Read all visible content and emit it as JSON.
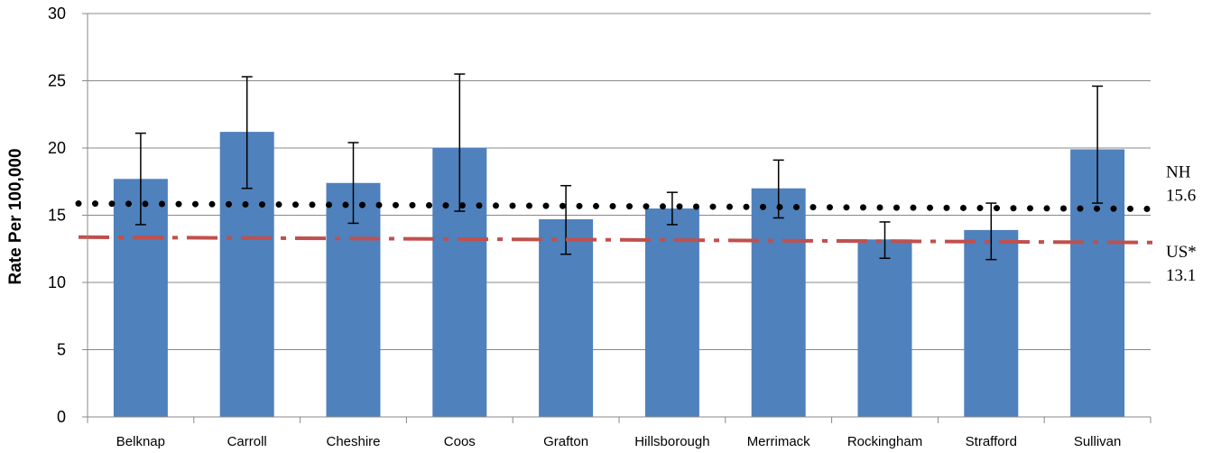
{
  "chart_data": {
    "type": "bar",
    "title": "",
    "xlabel": "",
    "ylabel": "Rate Per 100,000",
    "ylim": [
      0,
      30
    ],
    "yticks": [
      0,
      5,
      10,
      15,
      20,
      25,
      30
    ],
    "grid": true,
    "categories": [
      "Belknap",
      "Carroll",
      "Cheshire",
      "Coos",
      "Grafton",
      "Hillsborough",
      "Merrimack",
      "Rockingham",
      "Strafford",
      "Sullivan"
    ],
    "values": [
      17.7,
      21.2,
      17.4,
      20.0,
      14.7,
      15.5,
      17.0,
      13.2,
      13.9,
      19.9
    ],
    "error_low": [
      14.3,
      17.0,
      14.4,
      15.3,
      12.1,
      14.3,
      14.8,
      11.8,
      11.7,
      15.9
    ],
    "error_high": [
      21.1,
      25.3,
      20.4,
      25.5,
      17.2,
      16.7,
      19.1,
      14.5,
      15.9,
      24.6
    ],
    "bar_color": "#4f81bd",
    "reference_lines": [
      {
        "name": "NH",
        "value": 15.6,
        "label_line1": "NH",
        "label_line2": "15.6",
        "style": "dotted",
        "color": "#000000"
      },
      {
        "name": "US*",
        "value": 13.1,
        "label_line1": "US*",
        "label_line2": "13.1",
        "style": "dash-dot",
        "color": "#c0504d"
      }
    ]
  }
}
